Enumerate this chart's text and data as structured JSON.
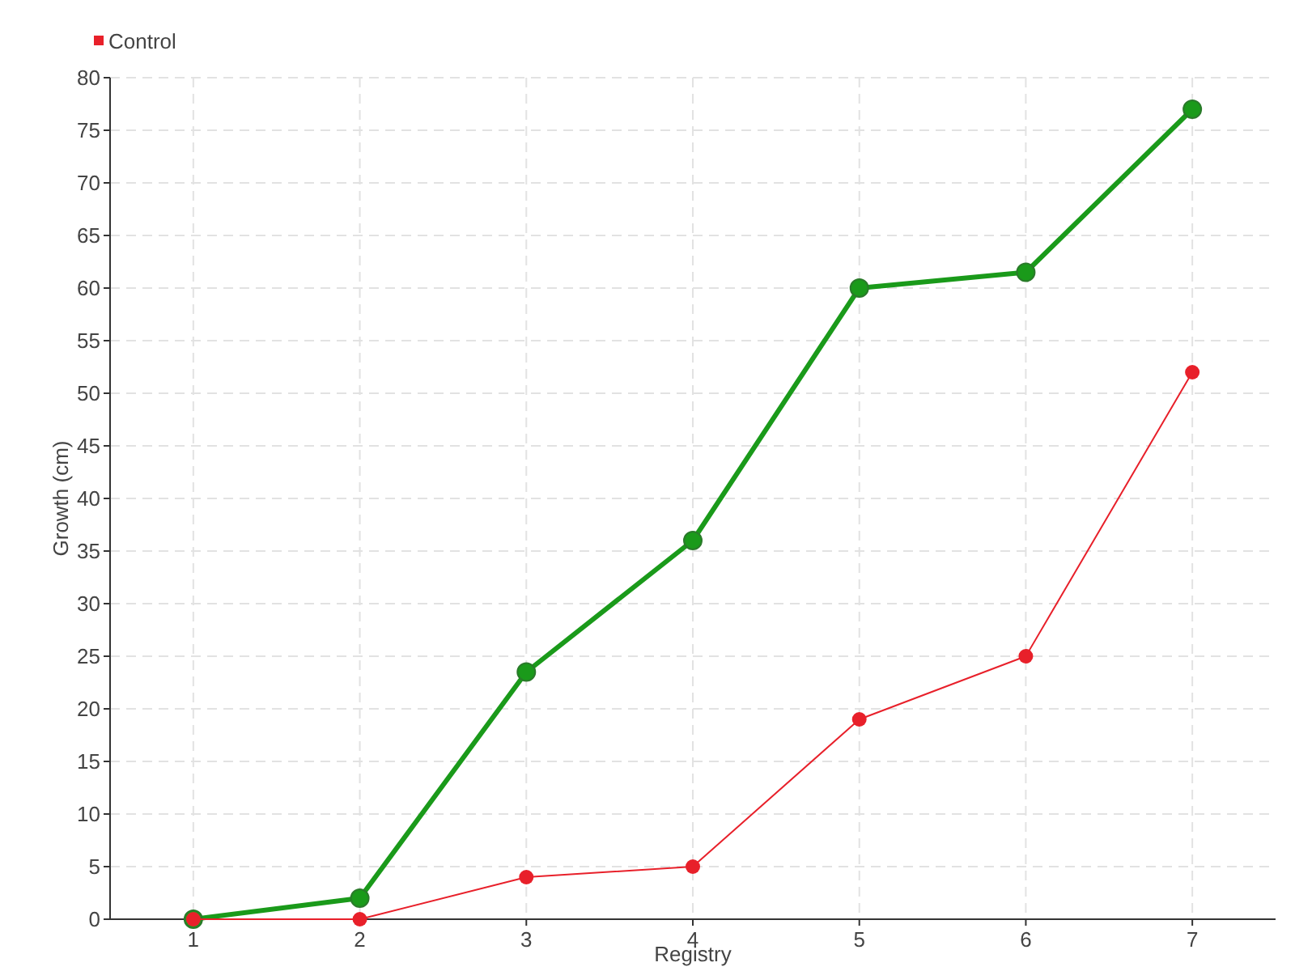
{
  "chart_data": {
    "type": "line",
    "xlabel": "Registry",
    "ylabel": "Growth (cm)",
    "categories": [
      "1",
      "2",
      "3",
      "4",
      "5",
      "6",
      "7"
    ],
    "series": [
      {
        "color": "#1a9a1a",
        "values": [
          0,
          2,
          23.5,
          36,
          60,
          61.5,
          77
        ]
      },
      {
        "name": "Control",
        "color": "#e8202a",
        "values": [
          0,
          0,
          4,
          5,
          19,
          25,
          52
        ]
      }
    ],
    "ylim": [
      0,
      80
    ],
    "yticks": [
      0,
      5,
      10,
      15,
      20,
      25,
      30,
      35,
      40,
      45,
      50,
      55,
      60,
      65,
      70,
      75,
      80
    ],
    "grid": true,
    "legend": "top left",
    "marker": "circle",
    "line_style": "solid"
  }
}
